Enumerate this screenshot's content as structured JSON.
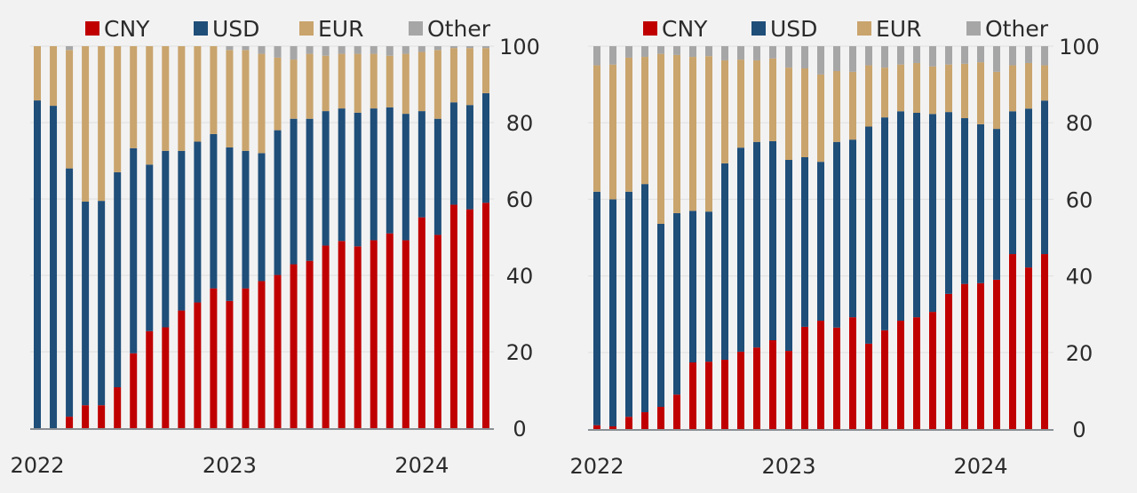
{
  "chart_data": [
    {
      "type": "bar",
      "stacked": true,
      "title": "",
      "xlabel": "",
      "ylabel": "",
      "ylim": [
        0,
        100
      ],
      "yticks": [
        "0",
        "20",
        "40",
        "60",
        "80",
        "100"
      ],
      "yaxis_side": "right",
      "grid": true,
      "legend_position": "top",
      "x_tick_labels": [
        {
          "label": "2022",
          "index": 0
        },
        {
          "label": "2023",
          "index": 12
        },
        {
          "label": "2024",
          "index": 24
        }
      ],
      "categories": [
        "2022-01",
        "2022-02",
        "2022-03",
        "2022-04",
        "2022-05",
        "2022-06",
        "2022-07",
        "2022-08",
        "2022-09",
        "2022-10",
        "2022-11",
        "2022-12",
        "2023-01",
        "2023-02",
        "2023-03",
        "2023-04",
        "2023-05",
        "2023-06",
        "2023-07",
        "2023-08",
        "2023-09",
        "2023-10",
        "2023-11",
        "2023-12",
        "2024-01",
        "2024-02",
        "2024-03",
        "2024-04",
        "2024-05"
      ],
      "series": [
        {
          "name": "CNY",
          "color": "#c00000",
          "values": [
            0,
            0,
            3,
            6,
            6,
            10.7,
            19.6,
            25.4,
            26.4,
            30.8,
            32.9,
            36.6,
            33.3,
            36.6,
            38.5,
            40.1,
            42.9,
            43.8,
            47.8,
            49,
            47.6,
            49.2,
            51,
            49.2,
            55.2,
            50.6,
            58.5,
            57.3,
            59
          ]
        },
        {
          "name": "USD",
          "color": "#1f4e79",
          "values": [
            85.8,
            84.4,
            65,
            53.3,
            53.5,
            56.3,
            53.7,
            43.6,
            46.2,
            41.8,
            42.1,
            40.4,
            40.2,
            36,
            33.5,
            37.9,
            38.1,
            37.2,
            35.2,
            34.7,
            35,
            34.5,
            33,
            33.1,
            27.8,
            30.4,
            26.8,
            27.3,
            28.7
          ]
        },
        {
          "name": "EUR",
          "color": "#c9a46d",
          "values": [
            14.2,
            15.6,
            31,
            40.7,
            40.5,
            33,
            26.7,
            31,
            27.4,
            27.4,
            25,
            23,
            25.5,
            26.4,
            26,
            19,
            15.5,
            17,
            14.5,
            14.3,
            15.4,
            14.3,
            13.5,
            15.7,
            15.5,
            18,
            14.2,
            14.9,
            11.8
          ]
        },
        {
          "name": "Other",
          "color": "#a6a6a6",
          "values": [
            0,
            0,
            1,
            0,
            0,
            0,
            0,
            0,
            0,
            0,
            0,
            0,
            1,
            1,
            2,
            3,
            3.5,
            2,
            2.5,
            2,
            2,
            2,
            2.5,
            2,
            1.5,
            1,
            0.5,
            0.5,
            0.5
          ]
        }
      ]
    },
    {
      "type": "bar",
      "stacked": true,
      "title": "",
      "xlabel": "",
      "ylabel": "",
      "ylim": [
        0,
        100
      ],
      "yticks": [
        "0",
        "20",
        "40",
        "60",
        "80",
        "100"
      ],
      "yaxis_side": "right",
      "grid": true,
      "legend_position": "top",
      "x_tick_labels": [
        {
          "label": "2022",
          "index": 0
        },
        {
          "label": "2023",
          "index": 12
        },
        {
          "label": "2024",
          "index": 24
        }
      ],
      "categories": [
        "2022-01",
        "2022-02",
        "2022-03",
        "2022-04",
        "2022-05",
        "2022-06",
        "2022-07",
        "2022-08",
        "2022-09",
        "2022-10",
        "2022-11",
        "2022-12",
        "2023-01",
        "2023-02",
        "2023-03",
        "2023-04",
        "2023-05",
        "2023-06",
        "2023-07",
        "2023-08",
        "2023-09",
        "2023-10",
        "2023-11",
        "2023-12",
        "2024-01",
        "2024-02",
        "2024-03",
        "2024-04",
        "2024-05"
      ],
      "series": [
        {
          "name": "CNY",
          "color": "#c00000",
          "values": [
            1,
            0.7,
            3.2,
            4.4,
            5.8,
            9,
            17.4,
            17.6,
            18.1,
            20.2,
            21.3,
            23.2,
            20.4,
            26.7,
            28.3,
            26.5,
            29.2,
            22.3,
            25.8,
            28.3,
            29.2,
            30.6,
            35.3,
            37.9,
            38.1,
            39,
            45.7,
            42.2,
            45.7
          ]
        },
        {
          "name": "USD",
          "color": "#1f4e79",
          "values": [
            61,
            59.3,
            58.8,
            59.6,
            47.8,
            47.4,
            39.6,
            39.2,
            51.3,
            53.3,
            53.7,
            52,
            49.9,
            44.3,
            41.5,
            48.5,
            46.4,
            56.7,
            55.6,
            54.7,
            53.4,
            51.7,
            47.5,
            43.3,
            41.5,
            39.4,
            37.3,
            41.5,
            40.1
          ]
        },
        {
          "name": "EUR",
          "color": "#c9a46d",
          "values": [
            33,
            35.2,
            35,
            33.2,
            44.4,
            41.3,
            40.2,
            40.6,
            26.9,
            23,
            21.3,
            21.6,
            24.1,
            23.2,
            22.8,
            18.5,
            17.7,
            16,
            13,
            12.2,
            13,
            12.4,
            12.4,
            14.2,
            16.2,
            14.9,
            12,
            11.9,
            9.2
          ]
        },
        {
          "name": "Other",
          "color": "#a6a6a6",
          "values": [
            5,
            4.8,
            3,
            2.8,
            2,
            2.3,
            2.8,
            2.6,
            3.7,
            3.5,
            3.7,
            3.2,
            5.6,
            5.8,
            7.4,
            6.5,
            6.7,
            5,
            5.6,
            4.8,
            4.4,
            5.3,
            4.8,
            4.6,
            4.2,
            6.7,
            5,
            4.4,
            5
          ]
        }
      ]
    }
  ]
}
